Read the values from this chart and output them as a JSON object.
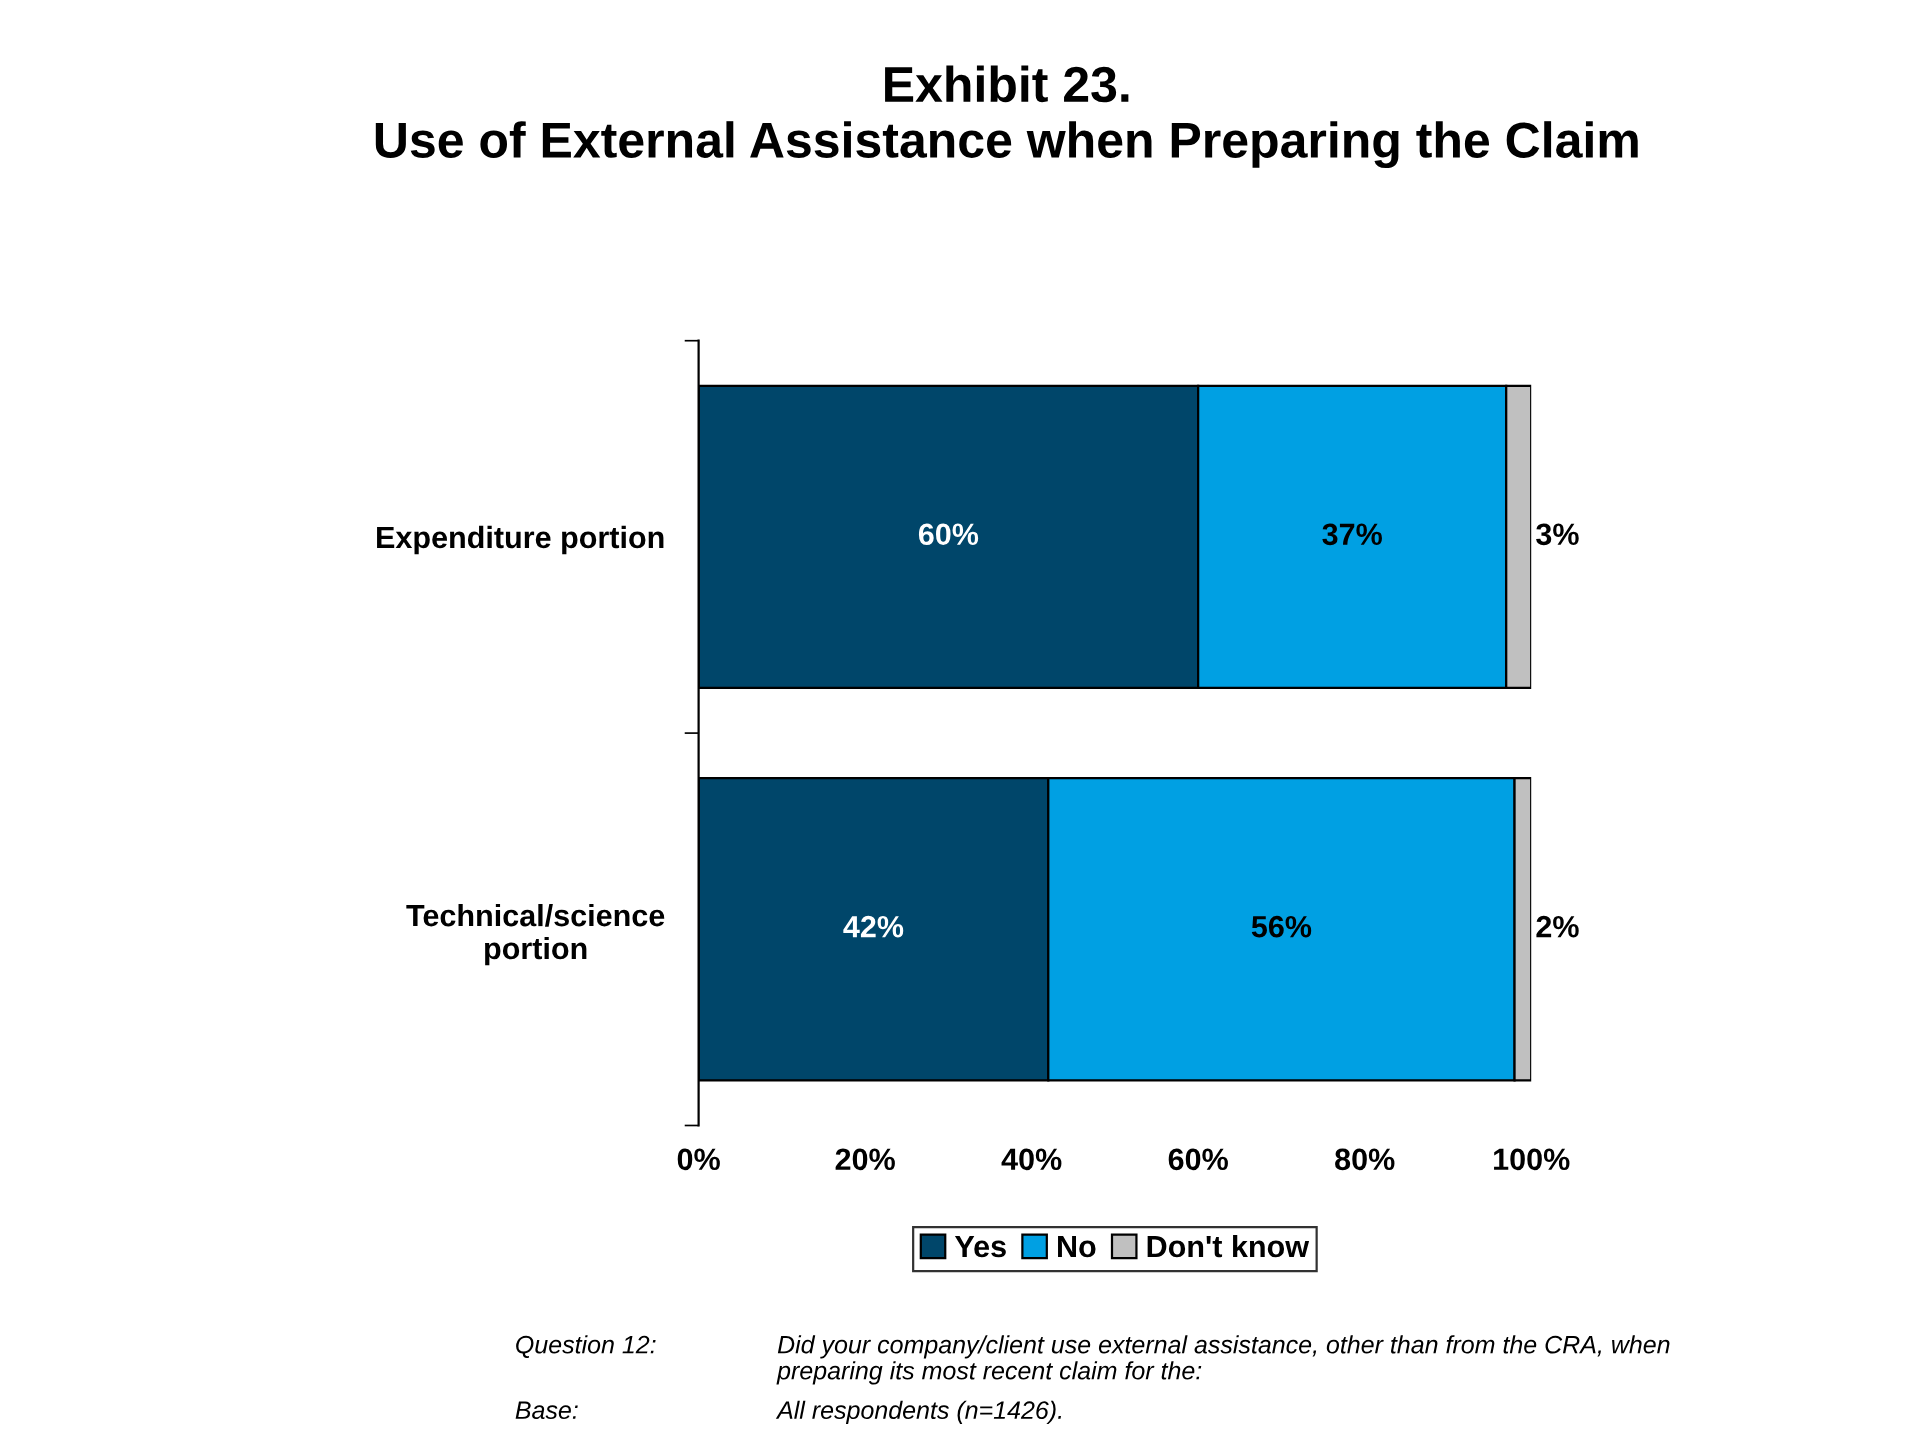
{
  "chart_data": {
    "type": "bar",
    "orientation": "horizontal",
    "stacked": true,
    "title": "Exhibit 23.\nUse of External Assistance when Preparing the Claim",
    "categories": [
      "Expenditure portion",
      "Technical/science\nportion"
    ],
    "series": [
      {
        "name": "Yes",
        "color": "#00466a",
        "values": [
          60,
          42
        ],
        "value_labels": [
          "60%",
          "42%"
        ]
      },
      {
        "name": "No",
        "color": "#00a0e3",
        "values": [
          37,
          56
        ],
        "value_labels": [
          "37%",
          "56%"
        ]
      },
      {
        "name": "Don't know",
        "color": "#c0c0c0",
        "values": [
          3,
          2
        ],
        "value_labels": [
          "3%",
          "2%"
        ]
      }
    ],
    "xlim": [
      0,
      100
    ],
    "xticks": [
      {
        "value": 0,
        "label": "0%"
      },
      {
        "value": 20,
        "label": "20%"
      },
      {
        "value": 40,
        "label": "40%"
      },
      {
        "value": 60,
        "label": "60%"
      },
      {
        "value": 80,
        "label": "80%"
      },
      {
        "value": 100,
        "label": "100%"
      }
    ],
    "grid": false,
    "legend": "bottom",
    "annotations": [
      "Question 12:",
      "Did your company/client use external assistance, other than from the CRA, when\npreparing its most recent claim for the:",
      "Base:",
      "All respondents (n=1426)."
    ]
  }
}
